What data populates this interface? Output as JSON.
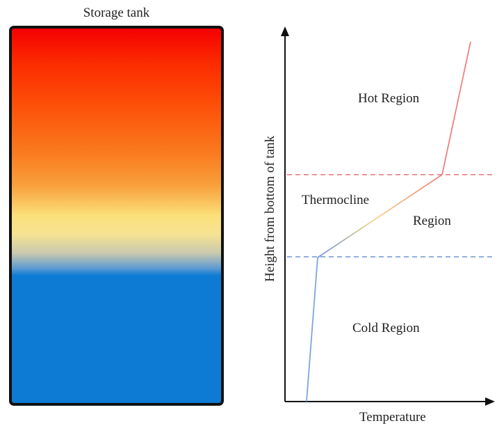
{
  "tank": {
    "title": "Storage tank"
  },
  "graph": {
    "regions": {
      "hot": "Hot Region",
      "thermocline": "Thermocline",
      "thermocline_region": "Region",
      "cold": "Cold Region"
    },
    "y_axis_label": "Height from bottom of tank",
    "x_axis_label": "Temperature"
  },
  "colors": {
    "hot": "#f50000",
    "warm_orange": "#fb7a1e",
    "yellow": "#fbe07a",
    "cold": "#0d7bd3",
    "hot_line": "#f08080",
    "cold_line": "#7aa6d8",
    "hot_boundary_dash": "#e8707a",
    "cold_boundary_dash": "#6f94d2",
    "tank_border": "#111111",
    "axis": "#111111"
  }
}
